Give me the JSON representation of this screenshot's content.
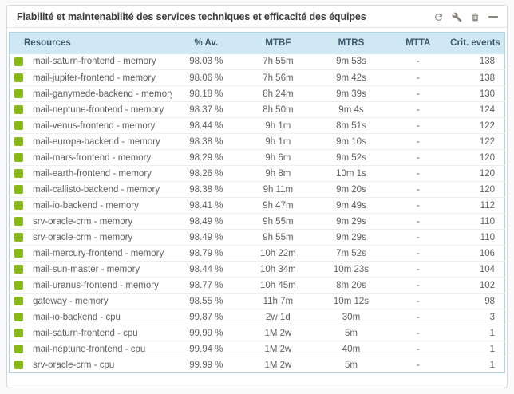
{
  "panel": {
    "title": "Fiabilité et maintenabilité des services techniques et efficacité des équipes",
    "toolbar_icons": [
      "refresh-icon",
      "wrench-icon",
      "delete-icon",
      "collapse-icon"
    ]
  },
  "colors": {
    "status_ok": "#88b917",
    "header_bg": "#d0e8f4",
    "header_text": "#3f5a6d",
    "table_border": "#aed3e5",
    "icon_grey": "#89847d",
    "title_text": "#3d3d3d",
    "row_text": "#606060"
  },
  "table": {
    "columns": [
      "Resources",
      "% Av.",
      "MTBF",
      "MTRS",
      "MTTA",
      "Crit. events"
    ],
    "rows": [
      {
        "status": "ok",
        "resource": "mail-saturn-frontend - memory",
        "availability": "98.03 %",
        "mtbf": "7h 55m",
        "mtrs": "9m 53s",
        "mtta": "-",
        "crit_events": "138"
      },
      {
        "status": "ok",
        "resource": "mail-jupiter-frontend - memory",
        "availability": "98.06 %",
        "mtbf": "7h 56m",
        "mtrs": "9m 42s",
        "mtta": "-",
        "crit_events": "138"
      },
      {
        "status": "ok",
        "resource": "mail-ganymede-backend - memory",
        "availability": "98.18 %",
        "mtbf": "8h 24m",
        "mtrs": "9m 39s",
        "mtta": "-",
        "crit_events": "130"
      },
      {
        "status": "ok",
        "resource": "mail-neptune-frontend - memory",
        "availability": "98.37 %",
        "mtbf": "8h 50m",
        "mtrs": "9m 4s",
        "mtta": "-",
        "crit_events": "124"
      },
      {
        "status": "ok",
        "resource": "mail-venus-frontend - memory",
        "availability": "98.44 %",
        "mtbf": "9h 1m",
        "mtrs": "8m 51s",
        "mtta": "-",
        "crit_events": "122"
      },
      {
        "status": "ok",
        "resource": "mail-europa-backend - memory",
        "availability": "98.38 %",
        "mtbf": "9h 1m",
        "mtrs": "9m 10s",
        "mtta": "-",
        "crit_events": "122"
      },
      {
        "status": "ok",
        "resource": "mail-mars-frontend - memory",
        "availability": "98.29 %",
        "mtbf": "9h 6m",
        "mtrs": "9m 52s",
        "mtta": "-",
        "crit_events": "120"
      },
      {
        "status": "ok",
        "resource": "mail-earth-frontend - memory",
        "availability": "98.26 %",
        "mtbf": "9h 8m",
        "mtrs": "10m 1s",
        "mtta": "-",
        "crit_events": "120"
      },
      {
        "status": "ok",
        "resource": "mail-callisto-backend - memory",
        "availability": "98.38 %",
        "mtbf": "9h 11m",
        "mtrs": "9m 20s",
        "mtta": "-",
        "crit_events": "120"
      },
      {
        "status": "ok",
        "resource": "mail-io-backend - memory",
        "availability": "98.41 %",
        "mtbf": "9h 47m",
        "mtrs": "9m 49s",
        "mtta": "-",
        "crit_events": "112"
      },
      {
        "status": "ok",
        "resource": "srv-oracle-crm - memory",
        "availability": "98.49 %",
        "mtbf": "9h 55m",
        "mtrs": "9m 29s",
        "mtta": "-",
        "crit_events": "110"
      },
      {
        "status": "ok",
        "resource": "srv-oracle-crm - memory",
        "availability": "98.49 %",
        "mtbf": "9h 55m",
        "mtrs": "9m 29s",
        "mtta": "-",
        "crit_events": "110"
      },
      {
        "status": "ok",
        "resource": "mail-mercury-frontend - memory",
        "availability": "98.79 %",
        "mtbf": "10h 22m",
        "mtrs": "7m 52s",
        "mtta": "-",
        "crit_events": "106"
      },
      {
        "status": "ok",
        "resource": "mail-sun-master - memory",
        "availability": "98.44 %",
        "mtbf": "10h 34m",
        "mtrs": "10m 23s",
        "mtta": "-",
        "crit_events": "104"
      },
      {
        "status": "ok",
        "resource": "mail-uranus-frontend - memory",
        "availability": "98.77 %",
        "mtbf": "10h 45m",
        "mtrs": "8m 20s",
        "mtta": "-",
        "crit_events": "102"
      },
      {
        "status": "ok",
        "resource": "gateway - memory",
        "availability": "98.55 %",
        "mtbf": "11h 7m",
        "mtrs": "10m 12s",
        "mtta": "-",
        "crit_events": "98"
      },
      {
        "status": "ok",
        "resource": "mail-io-backend - cpu",
        "availability": "99.87 %",
        "mtbf": "2w 1d",
        "mtrs": "30m",
        "mtta": "-",
        "crit_events": "3"
      },
      {
        "status": "ok",
        "resource": "mail-saturn-frontend - cpu",
        "availability": "99.99 %",
        "mtbf": "1M 2w",
        "mtrs": "5m",
        "mtta": "-",
        "crit_events": "1"
      },
      {
        "status": "ok",
        "resource": "mail-neptune-frontend - cpu",
        "availability": "99.94 %",
        "mtbf": "1M 2w",
        "mtrs": "40m",
        "mtta": "-",
        "crit_events": "1"
      },
      {
        "status": "ok",
        "resource": "srv-oracle-crm - cpu",
        "availability": "99.99 %",
        "mtbf": "1M 2w",
        "mtrs": "5m",
        "mtta": "-",
        "crit_events": "1"
      }
    ]
  }
}
